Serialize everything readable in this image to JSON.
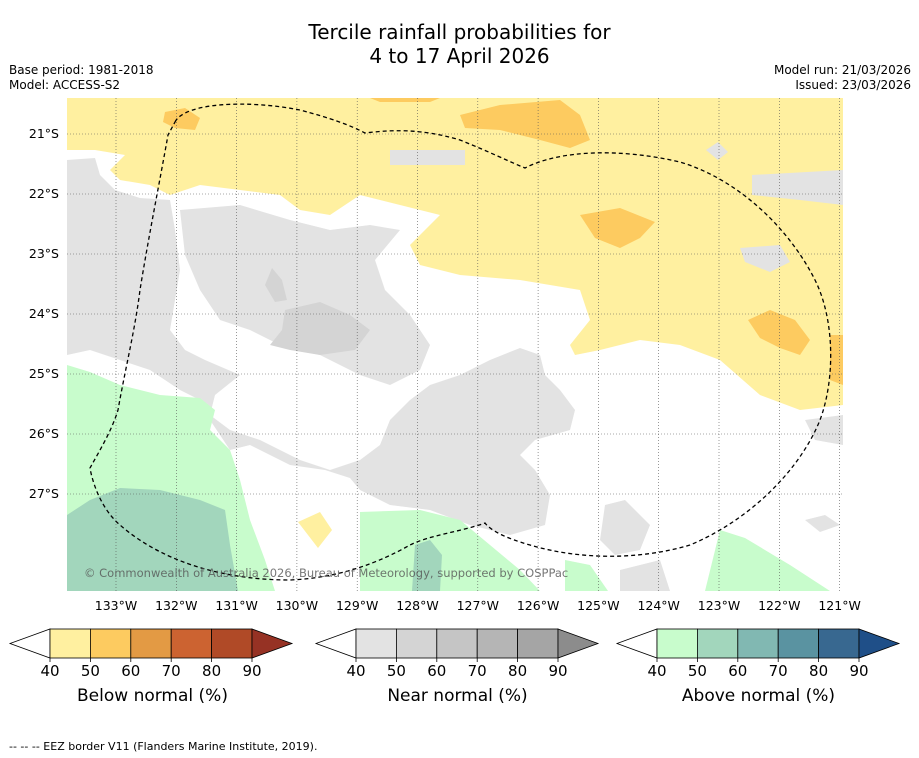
{
  "title_line1": "Tercile rainfall probabilities for",
  "title_line2": "4 to 17 April 2026",
  "base_period": "Base period: 1981-2018",
  "model": "Model: ACCESS-S2",
  "model_run": "Model run: 21/03/2026",
  "issued": "Issued: 23/03/2026",
  "copyright": "© Commonwealth of Australia 2026, Bureau of Meteorology, supported by COSPPac",
  "footnote": "--  --  -- EEZ border V11 (Flanders Marine Institute, 2019).",
  "lat_labels": [
    "21°S",
    "22°S",
    "23°S",
    "24°S",
    "25°S",
    "26°S",
    "27°S"
  ],
  "lon_labels": [
    "133°W",
    "132°W",
    "131°W",
    "130°W",
    "129°W",
    "128°W",
    "127°W",
    "126°W",
    "125°W",
    "124°W",
    "123°W",
    "122°W",
    "121°W"
  ],
  "colorbars": [
    {
      "name": "below",
      "label": "Below normal (%)",
      "ticks": [
        "40",
        "50",
        "60",
        "70",
        "80",
        "90"
      ],
      "colors": [
        "#fff0a0",
        "#fdcb60",
        "#e39a44",
        "#cc6331",
        "#b04a27",
        "#963224"
      ]
    },
    {
      "name": "near",
      "label": "Near normal (%)",
      "ticks": [
        "40",
        "50",
        "60",
        "70",
        "80",
        "90"
      ],
      "colors": [
        "#e3e3e3",
        "#d4d4d4",
        "#c5c5c5",
        "#b5b5b5",
        "#a5a5a5",
        "#8c8c8c"
      ]
    },
    {
      "name": "above",
      "label": "Above normal (%)",
      "ticks": [
        "40",
        "50",
        "60",
        "70",
        "80",
        "90"
      ],
      "colors": [
        "#c8fccc",
        "#a2d6bc",
        "#81b8b2",
        "#5a93a1",
        "#386890",
        "#1f4f88"
      ]
    }
  ],
  "colors": {
    "below40": "#fff0a0",
    "below50": "#fdcb60",
    "near40": "#e3e3e3",
    "near50": "#d4d4d4",
    "above40": "#c8fccc",
    "above50": "#a2d6bc"
  }
}
